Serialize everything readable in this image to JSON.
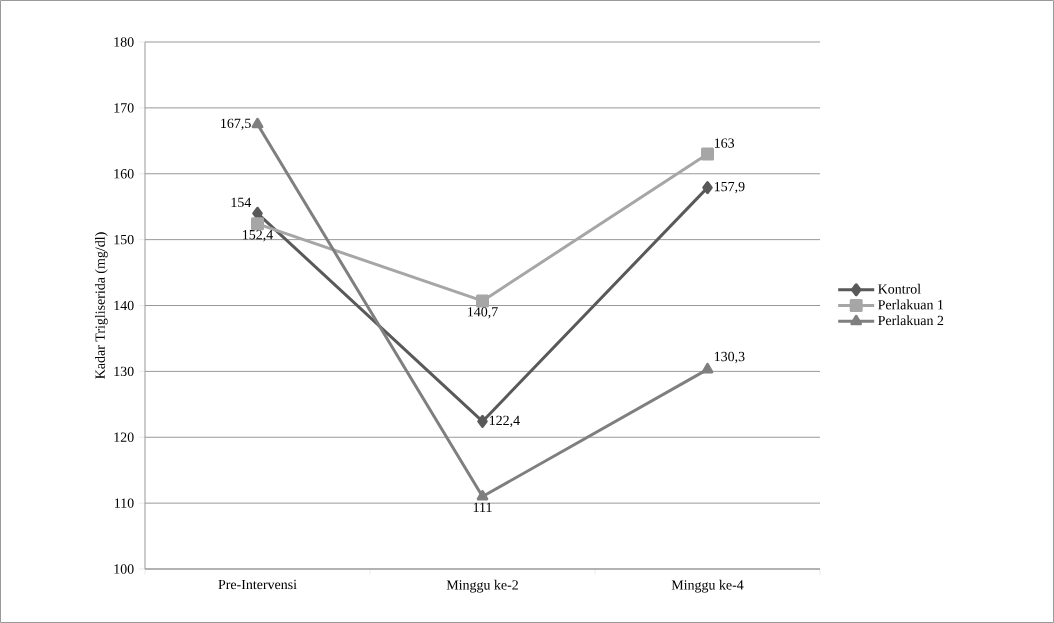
{
  "chart_data": {
    "type": "line",
    "ylabel": "Kadar Trigliserida (mg/dl)",
    "categories": [
      "Pre-Intervensi",
      "Minggu ke-2",
      "Minggu ke-4"
    ],
    "ylim": [
      100,
      180
    ],
    "yticks": [
      100,
      110,
      120,
      130,
      140,
      150,
      160,
      170,
      180
    ],
    "grid": "y",
    "legend": "right",
    "line_style": "solid",
    "series": [
      {
        "name": "Kontrol",
        "color": "#595959",
        "marker": "diamond",
        "values": [
          154,
          122.4,
          157.9
        ],
        "value_labels": [
          "154",
          "122,4",
          "157,9"
        ]
      },
      {
        "name": "Perlakuan 1",
        "color": "#a6a6a6",
        "marker": "square",
        "values": [
          152.4,
          140.7,
          163
        ],
        "value_labels": [
          "152,4",
          "140,7",
          "163"
        ]
      },
      {
        "name": "Perlakuan 2",
        "color": "#7f7f7f",
        "marker": "triangle",
        "values": [
          167.5,
          111,
          130.3
        ],
        "value_labels": [
          "167,5",
          "111",
          "130,3"
        ]
      }
    ]
  }
}
